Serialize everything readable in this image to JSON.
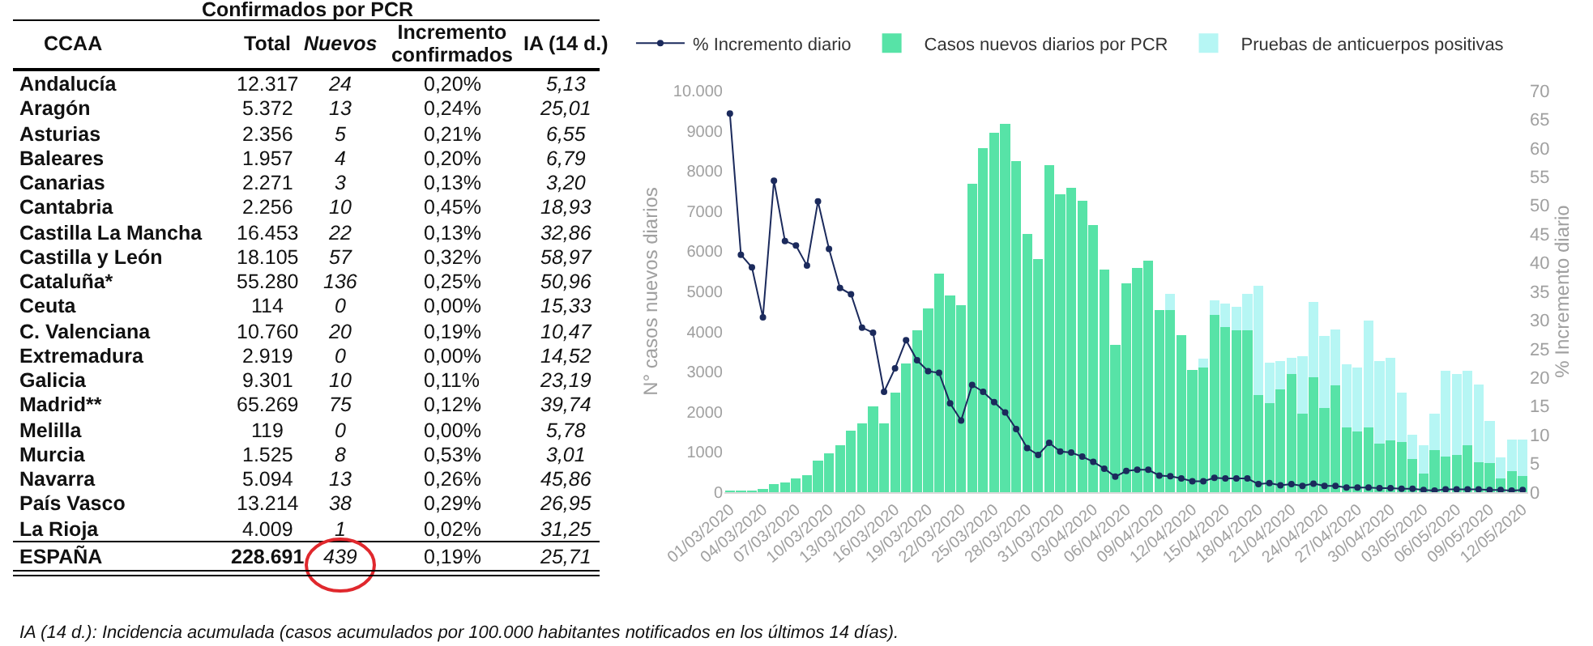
{
  "chart_data": [
    {
      "type": "other",
      "title": "Confirmados por PCR",
      "annotations": [
        "CCAA",
        "Total",
        "Nuevos",
        "Incremento confirmados",
        "IA (14 d.)",
        "Andalucía",
        "12.317",
        "24",
        "0,20%",
        "5,13",
        "Aragón",
        "5.372",
        "13",
        "0,24%",
        "25,01",
        "Asturias",
        "2.356",
        "5",
        "0,21%",
        "6,55",
        "Baleares",
        "1.957",
        "4",
        "0,20%",
        "6,79",
        "Canarias",
        "2.271",
        "3",
        "0,13%",
        "3,20",
        "Cantabria",
        "2.256",
        "10",
        "0,45%",
        "18,93",
        "Castilla La Mancha",
        "16.453",
        "22",
        "0,13%",
        "32,86",
        "Castilla y León",
        "18.105",
        "57",
        "0,32%",
        "58,97",
        "Cataluña*",
        "55.280",
        "136",
        "0,25%",
        "50,96",
        "Ceuta",
        "114",
        "0",
        "0,00%",
        "15,33",
        "C. Valenciana",
        "10.760",
        "20",
        "0,19%",
        "10,47",
        "Extremadura",
        "2.919",
        "0",
        "0,00%",
        "14,52",
        "Galicia",
        "9.301",
        "10",
        "0,11%",
        "23,19",
        "Madrid**",
        "65.269",
        "75",
        "0,12%",
        "39,74",
        "Melilla",
        "119",
        "0",
        "0,00%",
        "5,78",
        "Murcia",
        "1.525",
        "8",
        "0,53%",
        "3,01",
        "Navarra",
        "5.094",
        "13",
        "0,26%",
        "45,86",
        "País Vasco",
        "13.214",
        "38",
        "0,29%",
        "26,95",
        "La Rioja",
        "4.009",
        "1",
        "0,02%",
        "31,25",
        "ESPAÑA",
        "228.691",
        "439",
        "0,19%",
        "25,71",
        "IA (14 d.): Incidencia acumulada (casos acumulados por 100.000 habitantes notificados en los últimos 14 días)."
      ]
    },
    {
      "type": "bar",
      "stacked": true,
      "legend": "top",
      "grid": false,
      "marker": "circle",
      "line_style": "solid",
      "ylabel": "N° casos nuevos diarios",
      "y2label": "% Incremento diario",
      "x": [
        "2020-03-01",
        "2020-03-02",
        "2020-03-03",
        "2020-03-04",
        "2020-03-05",
        "2020-03-06",
        "2020-03-07",
        "2020-03-08",
        "2020-03-09",
        "2020-03-10",
        "2020-03-11",
        "2020-03-12",
        "2020-03-13",
        "2020-03-14",
        "2020-03-15",
        "2020-03-16",
        "2020-03-17",
        "2020-03-18",
        "2020-03-19",
        "2020-03-20",
        "2020-03-21",
        "2020-03-22",
        "2020-03-23",
        "2020-03-24",
        "2020-03-25",
        "2020-03-26",
        "2020-03-27",
        "2020-03-28",
        "2020-03-29",
        "2020-03-30",
        "2020-03-31",
        "2020-04-01",
        "2020-04-02",
        "2020-04-03",
        "2020-04-04",
        "2020-04-05",
        "2020-04-06",
        "2020-04-07",
        "2020-04-08",
        "2020-04-09",
        "2020-04-10",
        "2020-04-11",
        "2020-04-12",
        "2020-04-13",
        "2020-04-14",
        "2020-04-15",
        "2020-04-16",
        "2020-04-17",
        "2020-04-18",
        "2020-04-19",
        "2020-04-20",
        "2020-04-21",
        "2020-04-22",
        "2020-04-23",
        "2020-04-24",
        "2020-04-25",
        "2020-04-26",
        "2020-04-27",
        "2020-04-28",
        "2020-04-29",
        "2020-04-30",
        "2020-05-01",
        "2020-05-02",
        "2020-05-03",
        "2020-05-04",
        "2020-05-05",
        "2020-05-06",
        "2020-05-07",
        "2020-05-08",
        "2020-05-09",
        "2020-05-10",
        "2020-05-11",
        "2020-05-12"
      ],
      "xlim": [
        "2020-02-29T12:00",
        "2020-05-12T12:00"
      ],
      "xticks": [
        {
          "value": "2020-03-01",
          "label": "01/03/2020"
        },
        {
          "value": "2020-03-04",
          "label": "04/03/2020"
        },
        {
          "value": "2020-03-07",
          "label": "07/03/2020"
        },
        {
          "value": "2020-03-10",
          "label": "10/03/2020"
        },
        {
          "value": "2020-03-13",
          "label": "13/03/2020"
        },
        {
          "value": "2020-03-16",
          "label": "16/03/2020"
        },
        {
          "value": "2020-03-19",
          "label": "19/03/2020"
        },
        {
          "value": "2020-03-22",
          "label": "22/03/2020"
        },
        {
          "value": "2020-03-25",
          "label": "25/03/2020"
        },
        {
          "value": "2020-03-28",
          "label": "28/03/2020"
        },
        {
          "value": "2020-03-31",
          "label": "31/03/2020"
        },
        {
          "value": "2020-04-03",
          "label": "03/04/2020"
        },
        {
          "value": "2020-04-06",
          "label": "06/04/2020"
        },
        {
          "value": "2020-04-09",
          "label": "09/04/2020"
        },
        {
          "value": "2020-04-12",
          "label": "12/04/2020"
        },
        {
          "value": "2020-04-15",
          "label": "15/04/2020"
        },
        {
          "value": "2020-04-18",
          "label": "18/04/2020"
        },
        {
          "value": "2020-04-21",
          "label": "21/04/2020"
        },
        {
          "value": "2020-04-24",
          "label": "24/04/2020"
        },
        {
          "value": "2020-04-27",
          "label": "27/04/2020"
        },
        {
          "value": "2020-04-30",
          "label": "30/04/2020"
        },
        {
          "value": "2020-05-03",
          "label": "03/05/2020"
        },
        {
          "value": "2020-05-06",
          "label": "06/05/2020"
        },
        {
          "value": "2020-05-09",
          "label": "09/05/2020"
        },
        {
          "value": "2020-05-12",
          "label": "12/05/2020"
        }
      ],
      "ylim": [
        0,
        10000
      ],
      "yticks": [
        0,
        1000,
        2000,
        3000,
        4000,
        5000,
        6000,
        7000,
        8000,
        9000,
        {
          "value": 10000,
          "label": "10.000"
        }
      ],
      "y2lim": [
        0,
        70
      ],
      "y2ticks": [
        0,
        5,
        10,
        15,
        20,
        25,
        30,
        35,
        40,
        45,
        50,
        55,
        60,
        65,
        70
      ],
      "series": [
        {
          "name": "% Incremento diario",
          "type": "line",
          "axis": "y2",
          "color": "#1b2a5c",
          "values": [
            66,
            41.4,
            39.2,
            30.5,
            54.3,
            43.8,
            43,
            39.5,
            50.7,
            42.4,
            35.6,
            34.5,
            28.7,
            27.8,
            17.5,
            21.6,
            26.5,
            23,
            21.1,
            20.8,
            15.5,
            12.5,
            18.7,
            17.5,
            15.7,
            13.9,
            11,
            7.7,
            6.5,
            8.6,
            7.1,
            6.9,
            6.2,
            5.3,
            4.1,
            2.7,
            3.7,
            3.9,
            3.9,
            2.9,
            2.8,
            2.4,
            1.9,
            1.9,
            2.5,
            2.4,
            2.4,
            2.4,
            1.4,
            1.6,
            1.2,
            1.4,
            1.1,
            1.5,
            1.1,
            1.1,
            0.8,
            0.8,
            0.8,
            0.7,
            0.7,
            0.6,
            0.6,
            0.4,
            0.3,
            0.5,
            0.5,
            0.5,
            0.5,
            0.4,
            0.4,
            0.3,
            0.4
          ]
        },
        {
          "name": "Casos nuevos diarios por PCR",
          "color": "#57e3a7",
          "values": [
            40,
            40,
            50,
            80,
            200,
            240,
            340,
            430,
            780,
            970,
            1170,
            1530,
            1710,
            2140,
            1710,
            2480,
            3200,
            4040,
            4570,
            5450,
            4900,
            4650,
            7690,
            8560,
            8950,
            9180,
            8240,
            6440,
            5810,
            8150,
            7420,
            7580,
            7260,
            6650,
            5550,
            3670,
            5210,
            5590,
            5760,
            4540,
            4540,
            3920,
            3050,
            3110,
            4410,
            4120,
            4040,
            4040,
            2410,
            2210,
            2570,
            2950,
            1950,
            2860,
            2100,
            2670,
            1620,
            1510,
            1620,
            1210,
            1300,
            1250,
            820,
            460,
            1040,
            880,
            920,
            1170,
            750,
            730,
            340,
            530,
            400
          ]
        },
        {
          "name": "Pruebas de anticuerpos positivas",
          "color": "#b6f6f4",
          "values": [
            null,
            null,
            null,
            null,
            null,
            null,
            null,
            null,
            null,
            null,
            null,
            null,
            null,
            null,
            null,
            null,
            null,
            null,
            null,
            null,
            null,
            null,
            null,
            null,
            null,
            null,
            null,
            null,
            null,
            null,
            null,
            null,
            null,
            null,
            null,
            null,
            null,
            null,
            null,
            null,
            390,
            null,
            null,
            210,
            360,
            580,
            580,
            890,
            2730,
            1010,
            700,
            400,
            1440,
            1880,
            1790,
            1390,
            1560,
            1600,
            2660,
            2060,
            2050,
            1230,
            610,
            710,
            920,
            2140,
            2030,
            1850,
            1940,
            1040,
            520,
            780,
            910
          ]
        }
      ]
    }
  ]
}
